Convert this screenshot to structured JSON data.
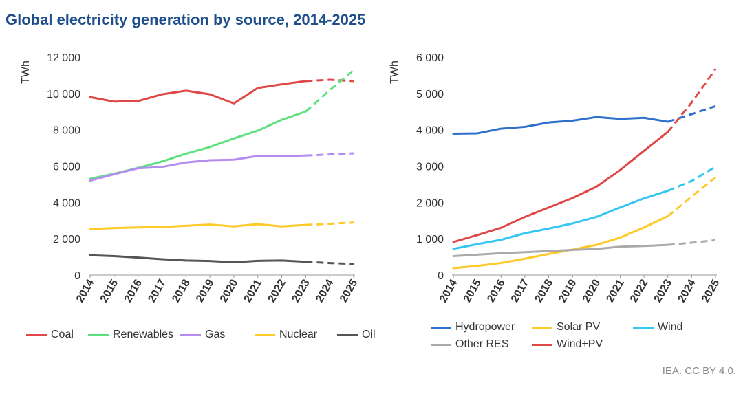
{
  "page": {
    "title": "Global electricity generation by source, 2014-2025",
    "credit": "IEA. CC BY 4.0."
  },
  "chart_data": [
    {
      "type": "line",
      "ylabel": "TWh",
      "x": [
        "2014",
        "2015",
        "2016",
        "2017",
        "2018",
        "2019",
        "2020",
        "2021",
        "2022",
        "2023",
        "2024",
        "2025"
      ],
      "ylim": [
        0,
        12000
      ],
      "yticks": [
        0,
        2000,
        4000,
        6000,
        8000,
        10000,
        12000
      ],
      "ytick_labels": [
        "0",
        "2 000",
        "4 000",
        "6 000",
        "8 000",
        "10 000",
        "12 000"
      ],
      "forecast_from": "2023",
      "series": [
        {
          "name": "Coal",
          "color": "#e04848",
          "values": [
            9800,
            9550,
            9580,
            9950,
            10150,
            9950,
            9450,
            10300,
            10500,
            10680,
            10750,
            10680
          ]
        },
        {
          "name": "Renewables",
          "color": "#5ee07e",
          "values": [
            5300,
            5580,
            5900,
            6250,
            6680,
            7050,
            7520,
            7950,
            8550,
            9000,
            10180,
            11280
          ]
        },
        {
          "name": "Gas",
          "color": "#b58cf0",
          "values": [
            5200,
            5550,
            5880,
            5950,
            6200,
            6320,
            6350,
            6560,
            6530,
            6580,
            6640,
            6700
          ]
        },
        {
          "name": "Nuclear",
          "color": "#ffc928",
          "values": [
            2530,
            2590,
            2620,
            2650,
            2710,
            2780,
            2680,
            2800,
            2680,
            2760,
            2820,
            2890
          ]
        },
        {
          "name": "Oil",
          "color": "#555555",
          "values": [
            1090,
            1040,
            960,
            870,
            800,
            770,
            700,
            780,
            800,
            730,
            660,
            610
          ]
        }
      ]
    },
    {
      "type": "line",
      "ylabel": "TWh",
      "x": [
        "2014",
        "2015",
        "2016",
        "2017",
        "2018",
        "2019",
        "2020",
        "2021",
        "2022",
        "2023",
        "2024",
        "2025"
      ],
      "ylim": [
        0,
        6000
      ],
      "yticks": [
        0,
        1000,
        2000,
        3000,
        4000,
        5000,
        6000
      ],
      "ytick_labels": [
        "0",
        "1 000",
        "2 000",
        "3 000",
        "4 000",
        "5 000",
        "6 000"
      ],
      "forecast_from": "2023",
      "series": [
        {
          "name": "Hydropower",
          "color": "#2f6fcc",
          "values": [
            3890,
            3900,
            4030,
            4080,
            4200,
            4250,
            4350,
            4300,
            4330,
            4220,
            4430,
            4650
          ]
        },
        {
          "name": "Solar PV",
          "color": "#ffc928",
          "values": [
            190,
            250,
            330,
            450,
            580,
            700,
            830,
            1030,
            1310,
            1620,
            2160,
            2690
          ]
        },
        {
          "name": "Wind",
          "color": "#33c6f0",
          "values": [
            720,
            850,
            970,
            1150,
            1280,
            1420,
            1600,
            1860,
            2110,
            2320,
            2590,
            2980
          ]
        },
        {
          "name": "Other RES",
          "color": "#aaaaaa",
          "values": [
            520,
            560,
            600,
            630,
            660,
            690,
            720,
            780,
            800,
            830,
            890,
            960
          ]
        },
        {
          "name": "Wind+PV",
          "color": "#e04848",
          "values": [
            910,
            1100,
            1300,
            1600,
            1860,
            2120,
            2430,
            2890,
            3420,
            3940,
            4750,
            5670
          ]
        }
      ]
    }
  ]
}
